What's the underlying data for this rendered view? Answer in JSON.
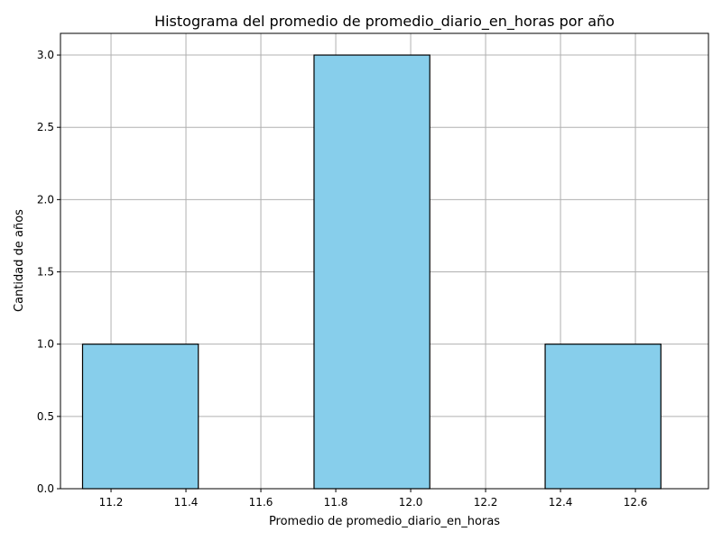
{
  "chart_data": {
    "type": "histogram",
    "title": "Histograma del promedio de promedio_diario_en_horas por año",
    "xlabel": "Promedio de promedio_diario_en_horas",
    "ylabel": "Cantidad de años",
    "xlim": [
      11.065,
      12.795
    ],
    "ylim": [
      0,
      3.15
    ],
    "xticks": [
      11.2,
      11.4,
      11.6,
      11.8,
      12.0,
      12.2,
      12.4,
      12.6
    ],
    "xtick_labels": [
      "11.2",
      "11.4",
      "11.6",
      "11.8",
      "12.0",
      "12.2",
      "12.4",
      "12.6"
    ],
    "yticks": [
      0,
      0.5,
      1.0,
      1.5,
      2.0,
      2.5,
      3.0
    ],
    "ytick_labels": [
      "0.0",
      "0.5",
      "1.0",
      "1.5",
      "2.0",
      "2.5",
      "3.0"
    ],
    "grid": true,
    "bar_color": "#87ceeb",
    "bar_edge_color": "#000000",
    "bins": [
      {
        "start": 11.124,
        "end": 11.433,
        "count": 1
      },
      {
        "start": 11.433,
        "end": 11.742,
        "count": 0
      },
      {
        "start": 11.742,
        "end": 12.051,
        "count": 3
      },
      {
        "start": 12.051,
        "end": 12.359,
        "count": 0
      },
      {
        "start": 12.359,
        "end": 12.668,
        "count": 1
      }
    ]
  }
}
